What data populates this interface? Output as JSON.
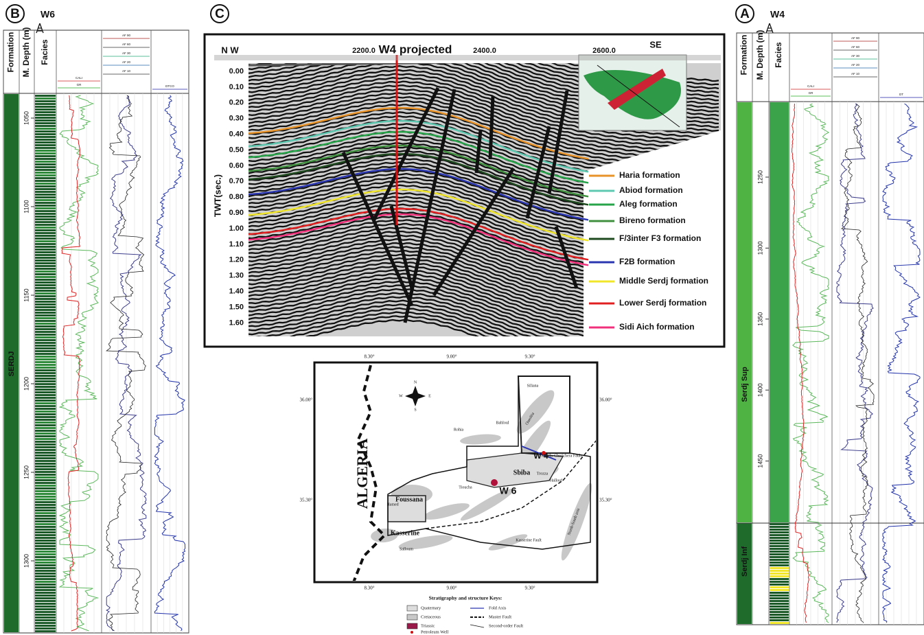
{
  "panel_b": {
    "label": "B",
    "well": "W6",
    "headers": [
      "Formation",
      "M. Depth (m)",
      "Facies"
    ],
    "depths": [
      1050,
      1100,
      1150,
      1200,
      1250,
      1300
    ],
    "formation": "SERDJ",
    "track_headers": [
      "CALI",
      "GR",
      "AF 90",
      "AF 60",
      "AF 30",
      "AF 20",
      "AF 10",
      "DTCO"
    ]
  },
  "panel_c": {
    "label": "C",
    "left": "N W",
    "right": "SE",
    "well": "W4 projected",
    "x_labels": [
      "2200.0",
      "2400.0",
      "2600.0"
    ],
    "y_title": "TWT(sec.)",
    "y_labels": [
      "0.00",
      "0.10",
      "0.20",
      "0.30",
      "0.40",
      "0.50",
      "0.60",
      "0.70",
      "0.80",
      "0.90",
      "1.00",
      "1.10",
      "1.20",
      "1.30",
      "1.40",
      "1.50",
      "1.60"
    ],
    "legend": [
      {
        "name": "Haria formation",
        "color": "#e8922a"
      },
      {
        "name": "Abiod formation",
        "color": "#5fc8b0"
      },
      {
        "name": "Aleg formation",
        "color": "#27a34a"
      },
      {
        "name": "Bireno formation",
        "color": "#3f8f3f"
      },
      {
        "name": "F/3inter F3 formation",
        "color": "#1f4a1f"
      },
      {
        "name": "F2B formation",
        "color": "#2a35b0"
      },
      {
        "name": "Middle Serdj formation",
        "color": "#f2e62a"
      },
      {
        "name": "Lower Serdj formation",
        "color": "#e02020"
      },
      {
        "name": "Sidi Aich formation",
        "color": "#f0307a"
      }
    ]
  },
  "map": {
    "lon_labels": [
      "8.30°",
      "9.00°",
      "9.30°"
    ],
    "lat_labels": [
      "36.00°",
      "35.30°"
    ],
    "country": "ALGERIA",
    "wells": [
      "W 4",
      "W 6"
    ],
    "compass": [
      "N",
      "S",
      "W",
      "E"
    ],
    "places": [
      "Siliana",
      "Ouesltia",
      "Bahloul",
      "Rohia",
      "Sbiba",
      "Hallouf",
      "Trozza",
      "Tioucha",
      "Foussana",
      "Hamed",
      "Kasserine",
      "Salloum",
      "North-South axis",
      "Kasserine Fault",
      "Mrhila-Cherichera Fault"
    ],
    "keys_title": "Stratigraphy and structure Keys:",
    "keys": [
      "Quaternary",
      "Cretaceous",
      "Triassic",
      "Petroleum Well",
      "Fold Axis",
      "Master Fault",
      "Second-order Fault"
    ]
  },
  "panel_a": {
    "label": "A",
    "well": "W4",
    "headers": [
      "Formation",
      "M. Depth (m)",
      "Facies"
    ],
    "depths": [
      1250,
      1300,
      1350,
      1400,
      1450
    ],
    "formations": [
      "Serdj Sup",
      "Serdj Inf"
    ],
    "track_headers": [
      "CALI",
      "GR",
      "AF 90",
      "AF 60",
      "AF 30",
      "AF 20",
      "AF 10",
      "DT"
    ]
  }
}
